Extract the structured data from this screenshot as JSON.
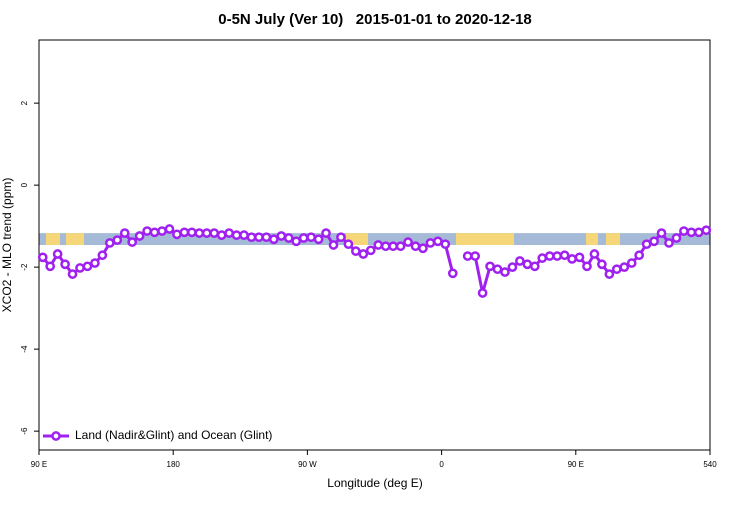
{
  "chart_data": {
    "type": "line",
    "title": "0-5N July (Ver 10)   2015-01-01 to 2020-12-18",
    "xlabel": "Longitude (deg E)",
    "ylabel": "XCO2 - MLO trend (ppm)",
    "xlim": [
      90,
      540
    ],
    "ylim": [
      -6.46,
      3.54
    ],
    "xticks": [
      {
        "value": 90,
        "label": "90 E"
      },
      180,
      {
        "value": 270,
        "label": "90 W"
      },
      {
        "value": 360,
        "label": "0"
      },
      {
        "value": 450,
        "label": "90 E"
      },
      540
    ],
    "yticks": [
      -6,
      -4,
      -2,
      0,
      2
    ],
    "band": {
      "range": [
        -1.46,
        -1.17
      ],
      "color": "#a4bad6"
    },
    "legend": "bottom-left",
    "x": [
      92.5,
      97.5,
      102.5,
      107.5,
      112.5,
      117.5,
      122.5,
      127.5,
      132.5,
      137.5,
      142.5,
      147.5,
      152.5,
      157.5,
      162.5,
      167.5,
      172.5,
      177.5,
      182.5,
      187.5,
      192.5,
      197.5,
      202.5,
      207.5,
      212.5,
      217.5,
      222.5,
      227.5,
      232.5,
      237.5,
      242.5,
      247.5,
      252.5,
      257.5,
      262.5,
      267.5,
      272.5,
      277.5,
      282.5,
      287.5,
      292.5,
      297.5,
      302.5,
      307.5,
      312.5,
      317.5,
      322.5,
      327.5,
      332.5,
      337.5,
      342.5,
      347.5,
      352.5,
      357.5,
      362.5,
      367.5,
      372.5,
      377.5,
      382.5,
      387.5,
      392.5,
      397.5,
      402.5,
      407.5,
      412.5,
      417.5,
      422.5,
      427.5,
      432.5,
      437.5,
      442.5,
      447.5,
      452.5,
      457.5,
      462.5,
      467.5,
      472.5,
      477.5,
      482.5,
      487.5,
      492.5,
      497.5,
      502.5,
      507.5,
      512.5,
      517.5,
      522.5,
      527.5,
      532.5,
      537.5
    ],
    "series": [
      {
        "name": "Land (Nadir&Glint) and Ocean (Glint)",
        "color": "#a020f0",
        "values": [
          -1.76,
          -1.98,
          -1.68,
          -1.93,
          -2.17,
          -2.02,
          -1.98,
          -1.9,
          -1.71,
          -1.41,
          -1.34,
          -1.17,
          -1.39,
          -1.24,
          -1.12,
          -1.15,
          -1.12,
          -1.07,
          -1.2,
          -1.15,
          -1.15,
          -1.17,
          -1.17,
          -1.17,
          -1.22,
          -1.17,
          -1.22,
          -1.22,
          -1.27,
          -1.27,
          -1.27,
          -1.32,
          -1.24,
          -1.29,
          -1.37,
          -1.29,
          -1.27,
          -1.32,
          -1.17,
          -1.46,
          -1.27,
          -1.44,
          -1.61,
          -1.68,
          -1.59,
          -1.46,
          -1.49,
          -1.49,
          -1.49,
          -1.39,
          -1.49,
          -1.54,
          -1.41,
          -1.37,
          -1.44,
          -2.15,
          null,
          -1.73,
          -1.73,
          -2.63,
          -1.98,
          -2.05,
          -2.12,
          -2.0,
          -1.85,
          -1.93,
          -1.98,
          -1.78,
          -1.73,
          -1.73,
          -1.71,
          -1.8,
          -1.76,
          -1.98,
          -1.68,
          -1.93,
          -2.17,
          -2.05,
          -2.0,
          -1.9,
          -1.71,
          -1.44,
          -1.37,
          -1.17,
          -1.41,
          -1.29,
          -1.12,
          -1.15,
          -1.15,
          -1.1
        ]
      }
    ]
  }
}
